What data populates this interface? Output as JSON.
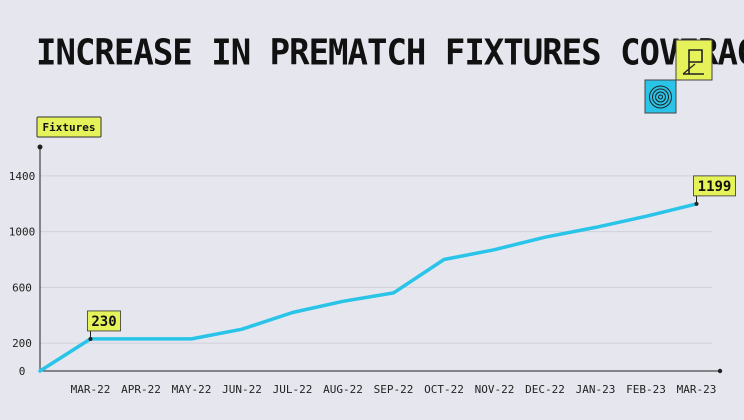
{
  "title": "INCREASE IN PREMATCH FIXTURES COVERAGE",
  "colors": {
    "line": "#29c4e8",
    "label_bg": "#e5f25a",
    "grid": "#d0d0da",
    "axis": "#222222",
    "icon_blue": "#29c4e8",
    "icon_yellow": "#e5f25a"
  },
  "chart_data": {
    "type": "line",
    "ylabel": "Fixtures",
    "xlabel": "",
    "categories": [
      "",
      "MAR-22",
      "APR-22",
      "MAY-22",
      "JUN-22",
      "JUL-22",
      "AUG-22",
      "SEP-22",
      "OCT-22",
      "NOV-22",
      "DEC-22",
      "JAN-23",
      "FEB-23",
      "MAR-23"
    ],
    "series": [
      {
        "values": [
          0,
          230,
          230,
          230,
          300,
          420,
          500,
          560,
          800,
          870,
          960,
          1030,
          1110,
          1199
        ]
      }
    ],
    "yticks": [
      0,
      200,
      600,
      1000,
      1400
    ],
    "ylim": [
      0,
      1600
    ],
    "annotations": [
      {
        "index": 1,
        "text": "230"
      },
      {
        "index": 13,
        "text": "1199"
      }
    ],
    "grid": true
  }
}
